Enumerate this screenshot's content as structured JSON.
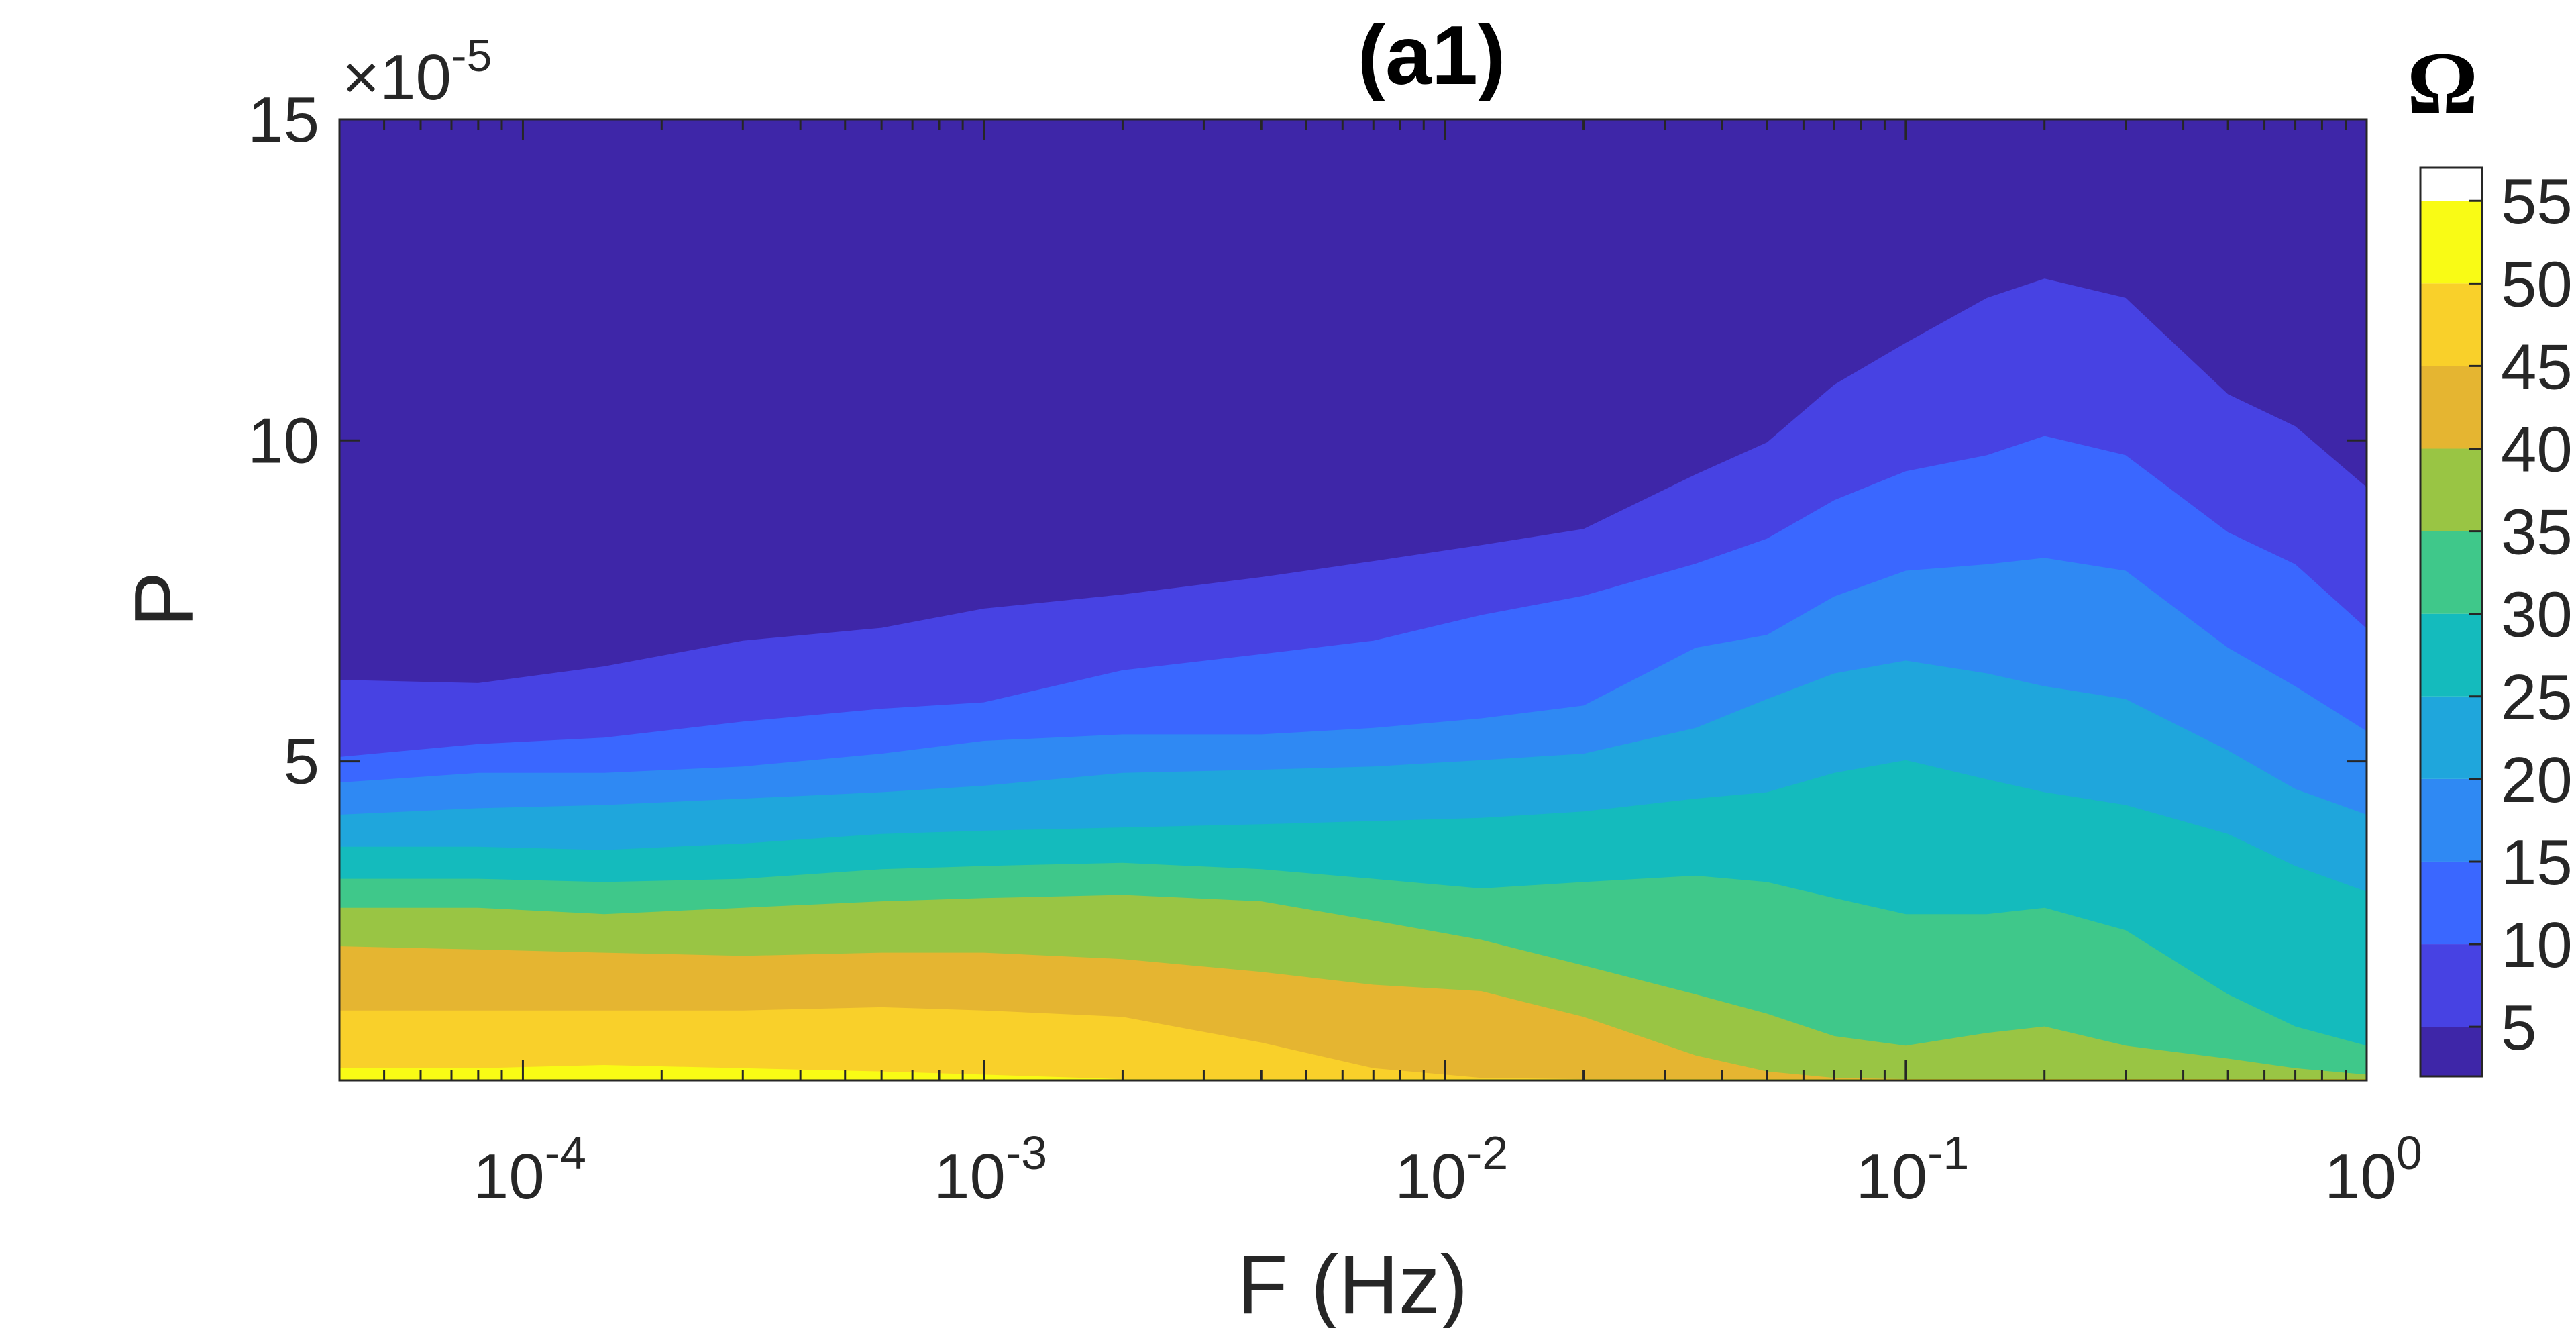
{
  "chart_data": {
    "type": "heatmap",
    "subtype": "filled-contour",
    "title": "(a1)",
    "xlabel": "F (Hz)",
    "ylabel": "P",
    "x_scale": "log",
    "xlim": [
      4e-05,
      1
    ],
    "x_ticks": [
      {
        "value": 0.0001,
        "base": "10",
        "exp": "-4"
      },
      {
        "value": 0.001,
        "base": "10",
        "exp": "-3"
      },
      {
        "value": 0.01,
        "base": "10",
        "exp": "-2"
      },
      {
        "value": 0.1,
        "base": "10",
        "exp": "-1"
      },
      {
        "value": 1,
        "base": "10",
        "exp": "0"
      }
    ],
    "ylim": [
      3e-07,
      0.00015
    ],
    "y_ticks": [
      {
        "value": 5e-05,
        "label": "5"
      },
      {
        "value": 0.0001,
        "label": "10"
      },
      {
        "value": 0.00015,
        "label": "15"
      }
    ],
    "y_multiplier": {
      "sign": "×",
      "base": "10",
      "exp": "-5"
    },
    "colorbar": {
      "title": "Ω",
      "levels": [
        2,
        5,
        10,
        15,
        20,
        25,
        30,
        35,
        40,
        45,
        50,
        55,
        57
      ],
      "colors": [
        "#3E26A8",
        "#4742E3",
        "#3A67FF",
        "#2F89F3",
        "#1FA6DC",
        "#14BBBD",
        "#3FC88A",
        "#99C544",
        "#E5B531",
        "#F9D02A",
        "#F9FB15"
      ],
      "tick_values": [
        5,
        10,
        15,
        20,
        25,
        30,
        35,
        40,
        45,
        50,
        55
      ],
      "tick_labels": [
        "5",
        "10",
        "15",
        "20",
        "25",
        "30",
        "35",
        "40",
        "45",
        "50",
        "55"
      ]
    },
    "series": [
      {
        "level": 5,
        "x": [
          4e-05,
          8e-05,
          0.00015,
          0.0003,
          0.0006,
          0.001,
          0.002,
          0.004,
          0.007,
          0.012,
          0.02,
          0.035,
          0.05,
          0.07,
          0.1,
          0.15,
          0.2,
          0.3,
          0.5,
          0.7,
          1
        ],
        "y": [
          6.27e-05,
          6.22e-05,
          6.48e-05,
          6.88e-05,
          7.08e-05,
          7.38e-05,
          7.6e-05,
          7.87e-05,
          8.12e-05,
          8.37e-05,
          8.62e-05,
          9.47e-05,
          9.97e-05,
          0.0001087,
          0.0001152,
          0.0001222,
          0.0001252,
          0.0001222,
          0.0001072,
          0.0001022,
          9.27e-05
        ]
      },
      {
        "level": 10,
        "x": [
          4e-05,
          8e-05,
          0.00015,
          0.0003,
          0.0006,
          0.001,
          0.002,
          0.004,
          0.007,
          0.012,
          0.02,
          0.035,
          0.05,
          0.07,
          0.1,
          0.15,
          0.2,
          0.3,
          0.5,
          0.7,
          1
        ],
        "y": [
          5.07e-05,
          5.27e-05,
          5.37e-05,
          5.62e-05,
          5.82e-05,
          5.92e-05,
          6.42e-05,
          6.67e-05,
          6.88e-05,
          7.28e-05,
          7.58e-05,
          8.08e-05,
          8.47e-05,
          9.07e-05,
          9.52e-05,
          9.77e-05,
          0.0001007,
          9.77e-05,
          8.57e-05,
          8.07e-05,
          7.07e-05
        ]
      },
      {
        "level": 15,
        "x": [
          4e-05,
          8e-05,
          0.00015,
          0.0003,
          0.0006,
          0.001,
          0.002,
          0.004,
          0.007,
          0.012,
          0.02,
          0.035,
          0.05,
          0.07,
          0.1,
          0.15,
          0.2,
          0.3,
          0.5,
          0.7,
          1
        ],
        "y": [
          4.67e-05,
          4.82e-05,
          4.82e-05,
          4.92e-05,
          5.12e-05,
          5.32e-05,
          5.42e-05,
          5.42e-05,
          5.52e-05,
          5.67e-05,
          5.87e-05,
          6.77e-05,
          6.97e-05,
          7.57e-05,
          7.97e-05,
          8.07e-05,
          8.17e-05,
          7.97e-05,
          6.77e-05,
          6.17e-05,
          5.47e-05
        ]
      },
      {
        "level": 20,
        "x": [
          4e-05,
          8e-05,
          0.00015,
          0.0003,
          0.0006,
          0.001,
          0.002,
          0.004,
          0.007,
          0.012,
          0.02,
          0.035,
          0.05,
          0.07,
          0.1,
          0.15,
          0.2,
          0.3,
          0.5,
          0.7,
          1
        ],
        "y": [
          4.17e-05,
          4.27e-05,
          4.32e-05,
          4.42e-05,
          4.52e-05,
          4.62e-05,
          4.82e-05,
          4.87e-05,
          4.92e-05,
          5.02e-05,
          5.12e-05,
          5.52e-05,
          5.97e-05,
          6.37e-05,
          6.57e-05,
          6.37e-05,
          6.17e-05,
          5.97e-05,
          5.17e-05,
          4.57e-05,
          4.17e-05
        ]
      },
      {
        "level": 25,
        "x": [
          4e-05,
          8e-05,
          0.00015,
          0.0003,
          0.0006,
          0.001,
          0.002,
          0.004,
          0.007,
          0.012,
          0.02,
          0.035,
          0.05,
          0.07,
          0.1,
          0.15,
          0.2,
          0.3,
          0.5,
          0.7,
          1
        ],
        "y": [
          3.67e-05,
          3.67e-05,
          3.62e-05,
          3.72e-05,
          3.87e-05,
          3.92e-05,
          3.97e-05,
          4.02e-05,
          4.07e-05,
          4.12e-05,
          4.22e-05,
          4.42e-05,
          4.52e-05,
          4.82e-05,
          5.02e-05,
          4.72e-05,
          4.52e-05,
          4.32e-05,
          3.87e-05,
          3.37e-05,
          2.97e-05
        ]
      },
      {
        "level": 30,
        "x": [
          4e-05,
          8e-05,
          0.00015,
          0.0003,
          0.0006,
          0.001,
          0.002,
          0.004,
          0.007,
          0.012,
          0.02,
          0.035,
          0.05,
          0.07,
          0.1,
          0.15,
          0.2,
          0.3,
          0.5,
          0.7,
          1
        ],
        "y": [
          3.17e-05,
          3.17e-05,
          3.12e-05,
          3.17e-05,
          3.32e-05,
          3.37e-05,
          3.42e-05,
          3.32e-05,
          3.17e-05,
          3.02e-05,
          3.12e-05,
          3.22e-05,
          3.12e-05,
          2.87e-05,
          2.62e-05,
          2.62e-05,
          2.72e-05,
          2.37e-05,
          1.37e-05,
          8.7e-06,
          5.7e-06
        ]
      },
      {
        "level": 35,
        "x": [
          4e-05,
          8e-05,
          0.00015,
          0.0003,
          0.0006,
          0.001,
          0.002,
          0.004,
          0.007,
          0.012,
          0.02,
          0.035,
          0.05,
          0.07,
          0.1,
          0.15,
          0.2,
          0.3,
          0.5,
          0.7,
          1
        ],
        "y": [
          2.72e-05,
          2.72e-05,
          2.62e-05,
          2.72e-05,
          2.82e-05,
          2.87e-05,
          2.92e-05,
          2.82e-05,
          2.52e-05,
          2.22e-05,
          1.82e-05,
          1.37e-05,
          1.07e-05,
          7.2e-06,
          5.7e-06,
          7.7e-06,
          8.7e-06,
          5.7e-06,
          3.7e-06,
          2.2e-06,
          1.2e-06
        ]
      },
      {
        "level": 40,
        "x": [
          4e-05,
          8e-05,
          0.00015,
          0.0003,
          0.0006,
          0.001,
          0.002,
          0.004,
          0.007,
          0.012,
          0.02,
          0.035,
          0.05,
          0.07,
          0.1,
          0.15,
          0.2,
          0.3,
          0.5,
          0.7,
          1
        ],
        "y": [
          2.12e-05,
          2.07e-05,
          2.02e-05,
          1.97e-05,
          2.02e-05,
          2.02e-05,
          1.92e-05,
          1.72e-05,
          1.52e-05,
          1.42e-05,
          1.02e-05,
          4.2e-06,
          1.7e-06,
          7e-07,
          5e-07,
          5e-07,
          5e-07,
          5e-07,
          5e-07,
          5e-07,
          5e-07
        ]
      },
      {
        "level": 45,
        "x": [
          4e-05,
          8e-05,
          0.00015,
          0.0003,
          0.0006,
          0.001,
          0.002,
          0.004,
          0.007,
          0.012,
          0.02,
          0.035,
          0.05,
          0.07,
          0.1,
          0.15,
          0.2,
          0.3,
          0.5,
          0.7,
          1
        ],
        "y": [
          1.12e-05,
          1.12e-05,
          1.12e-05,
          1.12e-05,
          1.17e-05,
          1.12e-05,
          1.02e-05,
          6.2e-06,
          2.2e-06,
          7e-07,
          5e-07,
          5e-07,
          5e-07,
          5e-07,
          5e-07,
          5e-07,
          5e-07,
          5e-07,
          5e-07,
          5e-07,
          5e-07
        ]
      },
      {
        "level": 50,
        "x": [
          4e-05,
          8e-05,
          0.00015,
          0.0003,
          0.0006,
          0.001,
          0.002,
          0.004,
          0.007,
          0.012,
          0.02,
          0.035,
          0.05,
          0.07,
          0.1,
          0.15,
          0.2,
          0.3,
          0.5,
          0.7,
          1
        ],
        "y": [
          2.2e-06,
          2.2e-06,
          2.7e-06,
          2.2e-06,
          1.7e-06,
          1.2e-06,
          5e-07,
          5e-07,
          5e-07,
          5e-07,
          5e-07,
          5e-07,
          5e-07,
          5e-07,
          5e-07,
          5e-07,
          5e-07,
          5e-07,
          5e-07,
          5e-07,
          5e-07
        ]
      }
    ]
  }
}
